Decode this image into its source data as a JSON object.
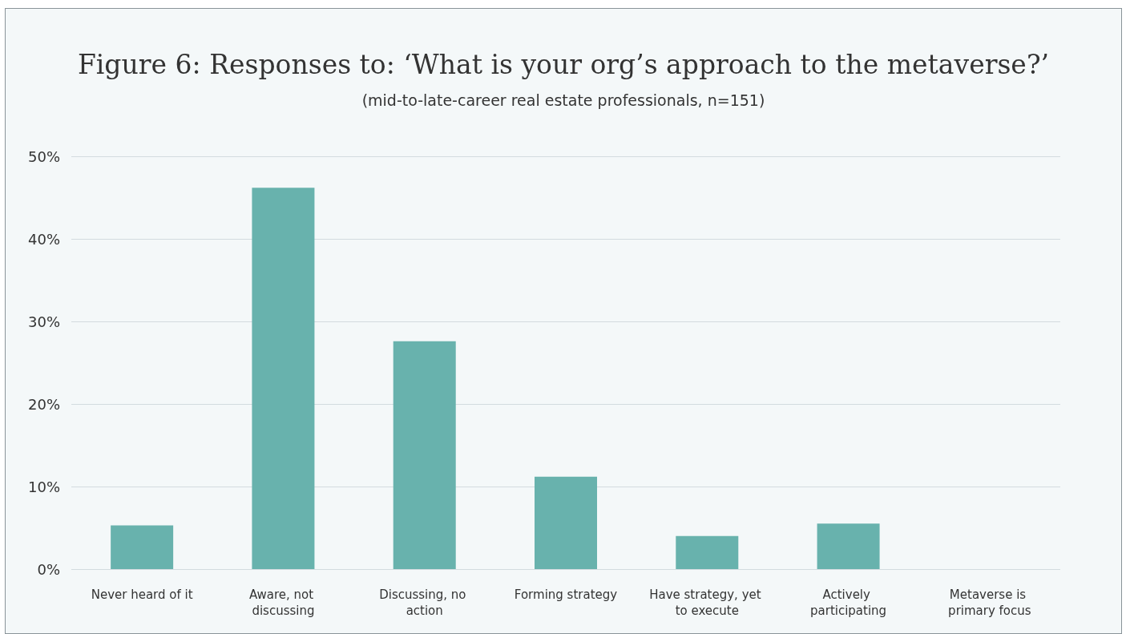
{
  "chart_data": {
    "type": "bar",
    "title": "Figure 6: Responses to: ‘What is your org’s approach to the metaverse?’",
    "subtitle": "(mid-to-late-career real estate professionals, n=151)",
    "categories": [
      "Never heard of it",
      "Aware, not discussing",
      "Discussing, no action",
      "Forming strategy",
      "Have strategy, yet to execute",
      "Actively participating",
      "Metaverse is primary focus"
    ],
    "values": [
      5.3,
      46.2,
      27.6,
      11.2,
      4.0,
      5.5,
      0
    ],
    "color": "#68b2ad",
    "ylim": [
      0,
      50
    ],
    "yticks": [
      {
        "value": 0,
        "label": "0%"
      },
      {
        "value": 10,
        "label": "10%"
      },
      {
        "value": 20,
        "label": "20%"
      },
      {
        "value": 30,
        "label": "30%"
      },
      {
        "value": 40,
        "label": "40%"
      },
      {
        "value": 50,
        "label": "50%"
      }
    ],
    "grid": "y"
  }
}
